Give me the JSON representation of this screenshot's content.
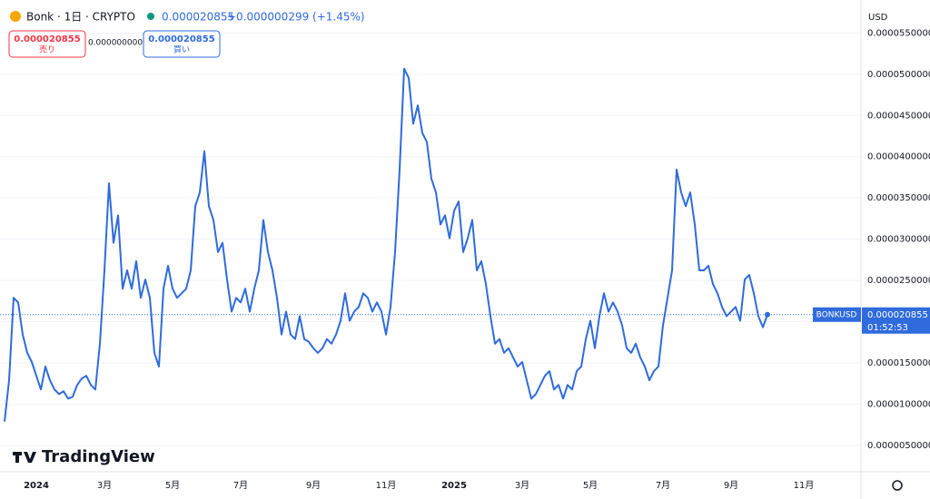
{
  "header": {
    "symbol": "Bonk · 1日 · CRYPTO",
    "price": "0.000020855",
    "change": "+0.000000299 (+1.45%)",
    "sell_price": "0.000020855",
    "sell": "売り",
    "spread": "0.000000000",
    "buy_price": "0.000020855",
    "buy": "買い",
    "currency": "USD",
    "logo": "TradingView"
  },
  "chart_data": {
    "type": "line",
    "color": "#2f6bdc",
    "grid": true,
    "symbol_tag": "BONKUSD",
    "last_price": 2.0855e-05,
    "countdown": "01:52:53",
    "ylim": [
      1.8e-06,
      5.9e-05
    ],
    "yticks": [
      {
        "value": 5e-06,
        "label": "0.0000050000"
      },
      {
        "value": 1e-05,
        "label": "0.0000100000"
      },
      {
        "value": 1.5e-05,
        "label": "0.0000150000"
      },
      {
        "value": 2e-05,
        "label": "0.0000200000"
      },
      {
        "value": 2.5e-05,
        "label": "0.0000250000"
      },
      {
        "value": 3e-05,
        "label": "0.0000300000"
      },
      {
        "value": 3.5e-05,
        "label": "0.0000350000"
      },
      {
        "value": 4e-05,
        "label": "0.0000400000"
      },
      {
        "value": 4.5e-05,
        "label": "0.0000450000"
      },
      {
        "value": 5e-05,
        "label": "0.0000500000"
      },
      {
        "value": 5.5e-05,
        "label": "0.0000550000"
      }
    ],
    "categories": [
      null,
      null,
      null,
      null,
      null,
      null,
      null,
      "2024",
      null,
      null,
      null,
      null,
      null,
      null,
      null,
      null,
      null,
      null,
      null,
      null,
      null,
      null,
      "3月",
      null,
      null,
      null,
      null,
      null,
      null,
      null,
      null,
      null,
      null,
      null,
      null,
      null,
      null,
      "5月",
      null,
      null,
      null,
      null,
      null,
      null,
      null,
      null,
      null,
      null,
      null,
      null,
      null,
      null,
      "7月",
      null,
      null,
      null,
      null,
      null,
      null,
      null,
      null,
      null,
      null,
      null,
      null,
      null,
      null,
      null,
      "9月",
      null,
      null,
      null,
      null,
      null,
      null,
      null,
      null,
      null,
      null,
      null,
      null,
      null,
      null,
      null,
      "11月",
      null,
      null,
      null,
      null,
      null,
      null,
      null,
      null,
      null,
      null,
      null,
      null,
      null,
      null,
      "2025",
      null,
      null,
      null,
      null,
      null,
      null,
      null,
      null,
      null,
      null,
      null,
      null,
      null,
      null,
      "3月",
      null,
      null,
      null,
      null,
      null,
      null,
      null,
      null,
      null,
      null,
      null,
      null,
      null,
      null,
      "5月",
      null,
      null,
      null,
      null,
      null,
      null,
      null,
      null,
      null,
      null,
      null,
      null,
      null,
      null,
      null,
      "7月",
      null,
      null,
      null,
      null,
      null,
      null,
      null,
      null,
      null,
      null,
      null,
      null,
      null,
      null,
      "9月",
      null,
      null,
      null,
      null,
      null,
      null,
      null,
      null,
      null,
      null,
      null,
      null,
      null,
      null,
      null,
      "11月"
    ],
    "series": [
      {
        "name": "BONKUSD",
        "values": [
          7.89e-06,
          1.289e-05,
          2.289e-05,
          2.233e-05,
          1.844e-05,
          1.622e-05,
          1.511e-05,
          1.344e-05,
          1.178e-05,
          1.456e-05,
          1.289e-05,
          1.178e-05,
          1.122e-05,
          1.156e-05,
          1.067e-05,
          1.089e-05,
          1.233e-05,
          1.311e-05,
          1.344e-05,
          1.233e-05,
          1.178e-05,
          1.733e-05,
          2.622e-05,
          3.678e-05,
          2.956e-05,
          3.289e-05,
          2.4e-05,
          2.622e-05,
          2.4e-05,
          2.733e-05,
          2.289e-05,
          2.511e-05,
          2.289e-05,
          1.622e-05,
          1.456e-05,
          2.4e-05,
          2.678e-05,
          2.4e-05,
          2.289e-05,
          2.344e-05,
          2.4e-05,
          2.622e-05,
          3.4e-05,
          3.567e-05,
          4.067e-05,
          3.4e-05,
          3.233e-05,
          2.844e-05,
          2.956e-05,
          2.511e-05,
          2.122e-05,
          2.289e-05,
          2.233e-05,
          2.4e-05,
          2.122e-05,
          2.4e-05,
          2.622e-05,
          3.233e-05,
          2.844e-05,
          2.622e-05,
          2.289e-05,
          1.844e-05,
          2.122e-05,
          1.844e-05,
          1.789e-05,
          2.067e-05,
          1.789e-05,
          1.756e-05,
          1.678e-05,
          1.622e-05,
          1.678e-05,
          1.789e-05,
          1.733e-05,
          1.844e-05,
          2.011e-05,
          2.344e-05,
          2.011e-05,
          2.122e-05,
          2.178e-05,
          2.344e-05,
          2.289e-05,
          2.122e-05,
          2.233e-05,
          2.122e-05,
          1.844e-05,
          2.178e-05,
          2.844e-05,
          3.844e-05,
          5.067e-05,
          4.956e-05,
          4.4e-05,
          4.622e-05,
          4.289e-05,
          4.178e-05,
          3.733e-05,
          3.567e-05,
          3.178e-05,
          3.289e-05,
          3.011e-05,
          3.344e-05,
          3.456e-05,
          2.844e-05,
          3.011e-05,
          3.233e-05,
          2.622e-05,
          2.733e-05,
          2.456e-05,
          2.067e-05,
          1.733e-05,
          1.789e-05,
          1.622e-05,
          1.678e-05,
          1.567e-05,
          1.456e-05,
          1.511e-05,
          1.289e-05,
          1.067e-05,
          1.122e-05,
          1.233e-05,
          1.344e-05,
          1.4e-05,
          1.178e-05,
          1.233e-05,
          1.067e-05,
          1.233e-05,
          1.178e-05,
          1.4e-05,
          1.456e-05,
          1.789e-05,
          2.011e-05,
          1.678e-05,
          2.067e-05,
          2.344e-05,
          2.122e-05,
          2.233e-05,
          2.122e-05,
          1.956e-05,
          1.678e-05,
          1.622e-05,
          1.733e-05,
          1.567e-05,
          1.456e-05,
          1.289e-05,
          1.4e-05,
          1.456e-05,
          1.956e-05,
          2.289e-05,
          2.622e-05,
          3.844e-05,
          3.567e-05,
          3.4e-05,
          3.567e-05,
          3.178e-05,
          2.622e-05,
          2.622e-05,
          2.678e-05,
          2.456e-05,
          2.344e-05,
          2.178e-05,
          2.067e-05,
          2.122e-05,
          2.178e-05,
          2.011e-05,
          2.511e-05,
          2.567e-05,
          2.344e-05,
          2.067e-05,
          1.933e-05,
          2.0855e-05,
          null,
          null,
          null,
          null,
          null,
          null,
          null,
          null
        ]
      }
    ]
  }
}
